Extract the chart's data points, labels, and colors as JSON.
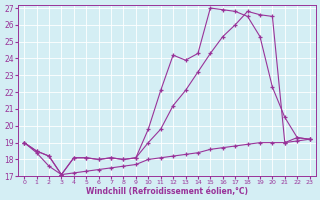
{
  "xlabel": "Windchill (Refroidissement éolien,°C)",
  "bg_color": "#d4eef4",
  "grid_color": "#ffffff",
  "line_color": "#993399",
  "xlim": [
    -0.5,
    23.5
  ],
  "ylim": [
    17,
    27.2
  ],
  "yticks": [
    17,
    18,
    19,
    20,
    21,
    22,
    23,
    24,
    25,
    26,
    27
  ],
  "xticks": [
    0,
    1,
    2,
    3,
    4,
    5,
    6,
    7,
    8,
    9,
    10,
    11,
    12,
    13,
    14,
    15,
    16,
    17,
    18,
    19,
    20,
    21,
    22,
    23
  ],
  "line1_x": [
    0,
    1,
    2,
    3,
    4,
    5,
    6,
    7,
    8,
    9,
    10,
    11,
    12,
    13,
    14,
    15,
    16,
    17,
    18,
    19,
    20,
    21,
    22,
    23
  ],
  "line1_y": [
    19.0,
    18.5,
    18.2,
    17.1,
    18.1,
    18.1,
    18.0,
    18.1,
    18.0,
    18.1,
    19.8,
    22.1,
    24.2,
    23.9,
    24.3,
    27.0,
    26.9,
    26.8,
    26.5,
    25.3,
    22.3,
    20.5,
    19.3,
    19.2
  ],
  "line2_x": [
    0,
    1,
    2,
    3,
    4,
    5,
    6,
    7,
    8,
    9,
    10,
    11,
    12,
    13,
    14,
    15,
    16,
    17,
    18,
    19,
    20,
    21,
    22,
    23
  ],
  "line2_y": [
    19.0,
    18.5,
    18.2,
    17.1,
    18.1,
    18.1,
    18.0,
    18.1,
    18.0,
    18.1,
    19.0,
    19.8,
    21.2,
    22.1,
    23.2,
    24.3,
    25.3,
    26.0,
    26.8,
    26.6,
    26.5,
    19.0,
    19.3,
    19.2
  ],
  "line3_x": [
    0,
    1,
    2,
    3,
    4,
    5,
    6,
    7,
    8,
    9,
    10,
    11,
    12,
    13,
    14,
    15,
    16,
    17,
    18,
    19,
    20,
    21,
    22,
    23
  ],
  "line3_y": [
    19.0,
    18.4,
    17.6,
    17.1,
    17.2,
    17.3,
    17.4,
    17.5,
    17.6,
    17.7,
    18.0,
    18.1,
    18.2,
    18.3,
    18.4,
    18.6,
    18.7,
    18.8,
    18.9,
    19.0,
    19.0,
    19.0,
    19.1,
    19.2
  ]
}
